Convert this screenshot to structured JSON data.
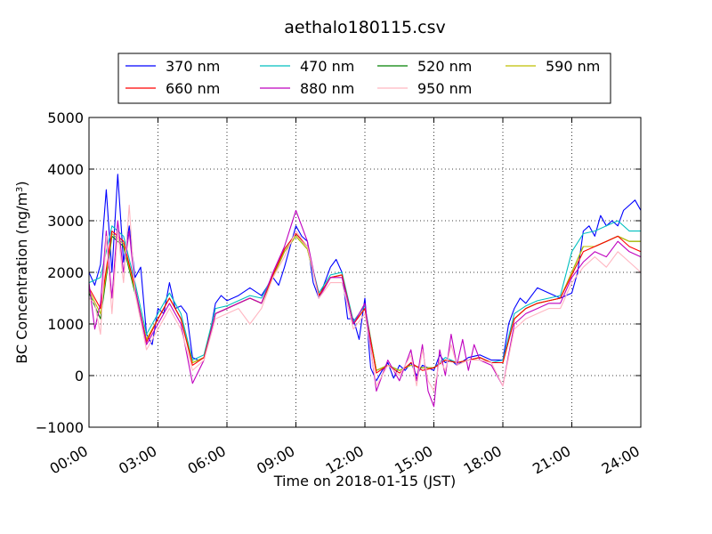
{
  "chart_data": {
    "type": "line",
    "title": "aethalo180115.csv",
    "xlabel": "Time on 2018-01-15 (JST)",
    "ylabel_main": "BC Concentration (ng/m",
    "ylabel_sup": "3",
    "ylabel_end": ")",
    "x_unit": "hours",
    "xlim": [
      0,
      24
    ],
    "ylim": [
      -1000,
      5000
    ],
    "grid": true,
    "legend_placement": "top-center",
    "x_ticks": [
      {
        "value": 0,
        "label": "00:00"
      },
      {
        "value": 3,
        "label": "03:00"
      },
      {
        "value": 6,
        "label": "06:00"
      },
      {
        "value": 9,
        "label": "09:00"
      },
      {
        "value": 12,
        "label": "12:00"
      },
      {
        "value": 15,
        "label": "15:00"
      },
      {
        "value": 18,
        "label": "18:00"
      },
      {
        "value": 21,
        "label": "21:00"
      },
      {
        "value": 24,
        "label": "24:00"
      }
    ],
    "y_ticks": [
      {
        "value": 5000,
        "label": "5000"
      },
      {
        "value": 4000,
        "label": "4000"
      },
      {
        "value": 3000,
        "label": "3000"
      },
      {
        "value": 2000,
        "label": "2000"
      },
      {
        "value": 1000,
        "label": "1000"
      },
      {
        "value": 0,
        "label": "0"
      },
      {
        "value": -1000,
        "label": "−1000"
      }
    ],
    "series": [
      {
        "name": "370 nm",
        "color": "#0000ff",
        "x": [
          0,
          0.25,
          0.5,
          0.75,
          1,
          1.25,
          1.5,
          1.75,
          2,
          2.25,
          2.5,
          2.75,
          3,
          3.25,
          3.5,
          3.75,
          4,
          4.25,
          4.5,
          4.75,
          5,
          5.25,
          5.5,
          5.75,
          6,
          6.5,
          7,
          7.5,
          8,
          8.25,
          8.5,
          8.75,
          9,
          9.25,
          9.5,
          9.75,
          10,
          10.25,
          10.5,
          10.75,
          11,
          11.25,
          11.5,
          11.75,
          12,
          12.25,
          12.5,
          12.75,
          13,
          13.25,
          13.5,
          13.75,
          14,
          14.25,
          14.5,
          14.75,
          15,
          15.25,
          15.5,
          15.75,
          16,
          16.5,
          17,
          17.5,
          18,
          18.25,
          18.5,
          18.75,
          19,
          19.5,
          20,
          20.5,
          21,
          21.25,
          21.5,
          21.75,
          22,
          22.25,
          22.5,
          22.75,
          23,
          23.25,
          23.5,
          23.75,
          24
        ],
        "y": [
          2000,
          1750,
          2150,
          3600,
          2000,
          3900,
          2200,
          2900,
          1900,
          2100,
          800,
          600,
          1300,
          1200,
          1800,
          1300,
          1350,
          1200,
          350,
          300,
          350,
          800,
          1400,
          1550,
          1450,
          1550,
          1700,
          1550,
          1900,
          1750,
          2100,
          2500,
          2900,
          2700,
          2600,
          1800,
          1500,
          1800,
          2100,
          2250,
          2000,
          1100,
          1100,
          700,
          1500,
          150,
          -100,
          100,
          250,
          -50,
          200,
          100,
          250,
          0,
          200,
          150,
          100,
          400,
          250,
          300,
          200,
          350,
          400,
          300,
          300,
          1000,
          1300,
          1500,
          1400,
          1700,
          1600,
          1500,
          1600,
          2000,
          2800,
          2900,
          2700,
          3100,
          2900,
          3000,
          2900,
          3200,
          3300,
          3400,
          3200
        ]
      },
      {
        "name": "470 nm",
        "color": "#00bfbf",
        "x": [
          0,
          0.5,
          1,
          1.5,
          2,
          2.5,
          3,
          3.5,
          4,
          4.5,
          5,
          5.5,
          6,
          6.5,
          7,
          7.5,
          8,
          8.5,
          9,
          9.5,
          10,
          10.5,
          11,
          11.5,
          12,
          12.5,
          13,
          13.5,
          14,
          14.5,
          15,
          15.5,
          16,
          16.5,
          17,
          17.5,
          18,
          18.5,
          19,
          19.5,
          20,
          20.5,
          21,
          21.5,
          22,
          22.5,
          23,
          23.5,
          24
        ],
        "y": [
          1800,
          1900,
          2900,
          2700,
          1800,
          800,
          1200,
          1600,
          1200,
          300,
          400,
          1300,
          1350,
          1450,
          1550,
          1500,
          1950,
          2450,
          2750,
          2500,
          1600,
          1950,
          2000,
          1050,
          1350,
          100,
          200,
          100,
          200,
          150,
          150,
          350,
          250,
          300,
          350,
          250,
          300,
          1200,
          1350,
          1450,
          1500,
          1550,
          2400,
          2750,
          2800,
          2900,
          3000,
          2800,
          2800
        ]
      },
      {
        "name": "520 nm",
        "color": "#008000",
        "x": [
          0,
          0.5,
          1,
          1.5,
          2,
          2.5,
          3,
          3.5,
          4,
          4.5,
          5,
          5.5,
          6,
          6.5,
          7,
          7.5,
          8,
          8.5,
          9,
          9.5,
          10,
          10.5,
          11,
          11.5,
          12,
          12.5,
          13,
          13.5,
          14,
          14.5,
          15,
          15.5,
          16,
          16.5,
          17,
          17.5,
          18,
          18.5,
          19,
          19.5,
          20,
          20.5,
          21,
          21.5,
          22,
          22.5,
          23,
          23.5,
          24
        ],
        "y": [
          1600,
          1100,
          2700,
          2500,
          1600,
          700,
          1100,
          1500,
          1100,
          250,
          350,
          1200,
          1300,
          1400,
          1500,
          1400,
          1900,
          2400,
          2700,
          2450,
          1550,
          1900,
          1950,
          1000,
          1300,
          100,
          200,
          100,
          200,
          150,
          150,
          300,
          250,
          300,
          350,
          250,
          250,
          1100,
          1300,
          1400,
          1450,
          1500,
          2000,
          2500,
          2500,
          2600,
          2700,
          2600,
          2600
        ]
      },
      {
        "name": "590 nm",
        "color": "#bfbf00",
        "x": [
          0,
          0.5,
          1,
          1.5,
          2,
          2.5,
          3,
          3.5,
          4,
          4.5,
          5,
          5.5,
          6,
          6.5,
          7,
          7.5,
          8,
          8.5,
          9,
          9.5,
          10,
          10.5,
          11,
          11.5,
          12,
          12.5,
          13,
          13.5,
          14,
          14.5,
          15,
          15.5,
          16,
          16.5,
          17,
          17.5,
          18,
          18.5,
          19,
          19.5,
          20,
          20.5,
          21,
          21.5,
          22,
          22.5,
          23,
          23.5,
          24
        ],
        "y": [
          1650,
          1200,
          2750,
          2550,
          1650,
          700,
          1100,
          1500,
          1100,
          250,
          350,
          1200,
          1300,
          1400,
          1500,
          1400,
          1900,
          2400,
          2700,
          2450,
          1550,
          1900,
          1950,
          1000,
          1300,
          100,
          200,
          100,
          200,
          150,
          150,
          300,
          250,
          300,
          350,
          250,
          250,
          1100,
          1300,
          1400,
          1450,
          1500,
          2000,
          2500,
          2500,
          2600,
          2700,
          2600,
          2600
        ]
      },
      {
        "name": "660 nm",
        "color": "#ff0000",
        "x": [
          0,
          0.5,
          1,
          1.5,
          2,
          2.5,
          3,
          3.5,
          4,
          4.5,
          5,
          5.5,
          6,
          6.5,
          7,
          7.5,
          8,
          8.5,
          9,
          9.5,
          10,
          10.5,
          11,
          11.5,
          12,
          12.5,
          13,
          13.5,
          14,
          14.5,
          15,
          15.5,
          16,
          16.5,
          17,
          17.5,
          18,
          18.5,
          19,
          19.5,
          20,
          20.5,
          21,
          21.5,
          22,
          22.5,
          23,
          23.5,
          24
        ],
        "y": [
          1700,
          1300,
          2800,
          2600,
          1700,
          650,
          1100,
          1500,
          1100,
          200,
          350,
          1200,
          1300,
          1400,
          1500,
          1400,
          1950,
          2450,
          2750,
          2500,
          1550,
          1900,
          1950,
          1000,
          1300,
          50,
          200,
          50,
          250,
          100,
          150,
          300,
          250,
          300,
          350,
          250,
          250,
          1100,
          1300,
          1400,
          1450,
          1500,
          1950,
          2400,
          2500,
          2600,
          2700,
          2500,
          2400
        ]
      },
      {
        "name": "880 nm",
        "color": "#bf00bf",
        "x": [
          0,
          0.25,
          0.5,
          0.75,
          1,
          1.25,
          1.5,
          1.75,
          2,
          2.5,
          3,
          3.5,
          4,
          4.5,
          5,
          5.5,
          6,
          6.5,
          7,
          7.5,
          8,
          8.5,
          9,
          9.5,
          10,
          10.5,
          11,
          11.5,
          12,
          12.5,
          13,
          13.5,
          14,
          14.25,
          14.5,
          14.75,
          15,
          15.25,
          15.5,
          15.75,
          16,
          16.25,
          16.5,
          16.75,
          17,
          17.5,
          18,
          18.5,
          19,
          19.5,
          20,
          20.5,
          21,
          21.5,
          22,
          22.5,
          23,
          23.5,
          24
        ],
        "y": [
          1800,
          900,
          1400,
          2800,
          1500,
          3000,
          2000,
          2800,
          1700,
          600,
          1000,
          1400,
          1000,
          -150,
          300,
          1200,
          1300,
          1400,
          1500,
          1400,
          2000,
          2500,
          3200,
          2600,
          1500,
          1900,
          1900,
          1000,
          1400,
          -300,
          300,
          -100,
          500,
          -100,
          600,
          -300,
          -600,
          500,
          0,
          800,
          200,
          700,
          100,
          600,
          300,
          200,
          -200,
          1000,
          1200,
          1300,
          1400,
          1400,
          1900,
          2200,
          2400,
          2300,
          2600,
          2400,
          2300
        ]
      },
      {
        "name": "950 nm",
        "color": "#ffb6c1",
        "x": [
          0,
          0.25,
          0.5,
          0.75,
          1,
          1.25,
          1.5,
          1.75,
          2,
          2.5,
          3,
          3.5,
          4,
          4.5,
          5,
          5.5,
          6,
          6.5,
          7,
          7.5,
          8,
          8.5,
          9,
          9.5,
          10,
          10.5,
          11,
          11.5,
          12,
          12.5,
          13,
          13.5,
          14,
          14.25,
          14.5,
          14.75,
          15,
          15.25,
          15.5,
          15.75,
          16,
          16.5,
          17,
          17.5,
          18,
          18.5,
          19,
          19.5,
          20,
          20.5,
          21,
          21.5,
          22,
          22.5,
          23,
          23.5,
          24
        ],
        "y": [
          1500,
          1400,
          800,
          2700,
          1200,
          2800,
          1800,
          3300,
          1600,
          500,
          900,
          1300,
          900,
          100,
          300,
          1100,
          1200,
          1300,
          1000,
          1300,
          1900,
          2300,
          2800,
          2500,
          1500,
          1800,
          1800,
          900,
          1200,
          -200,
          200,
          0,
          400,
          -200,
          500,
          -100,
          -300,
          300,
          100,
          600,
          200,
          300,
          300,
          250,
          -200,
          900,
          1100,
          1200,
          1300,
          1300,
          1800,
          2100,
          2300,
          2100,
          2400,
          2200,
          2000
        ]
      }
    ]
  }
}
